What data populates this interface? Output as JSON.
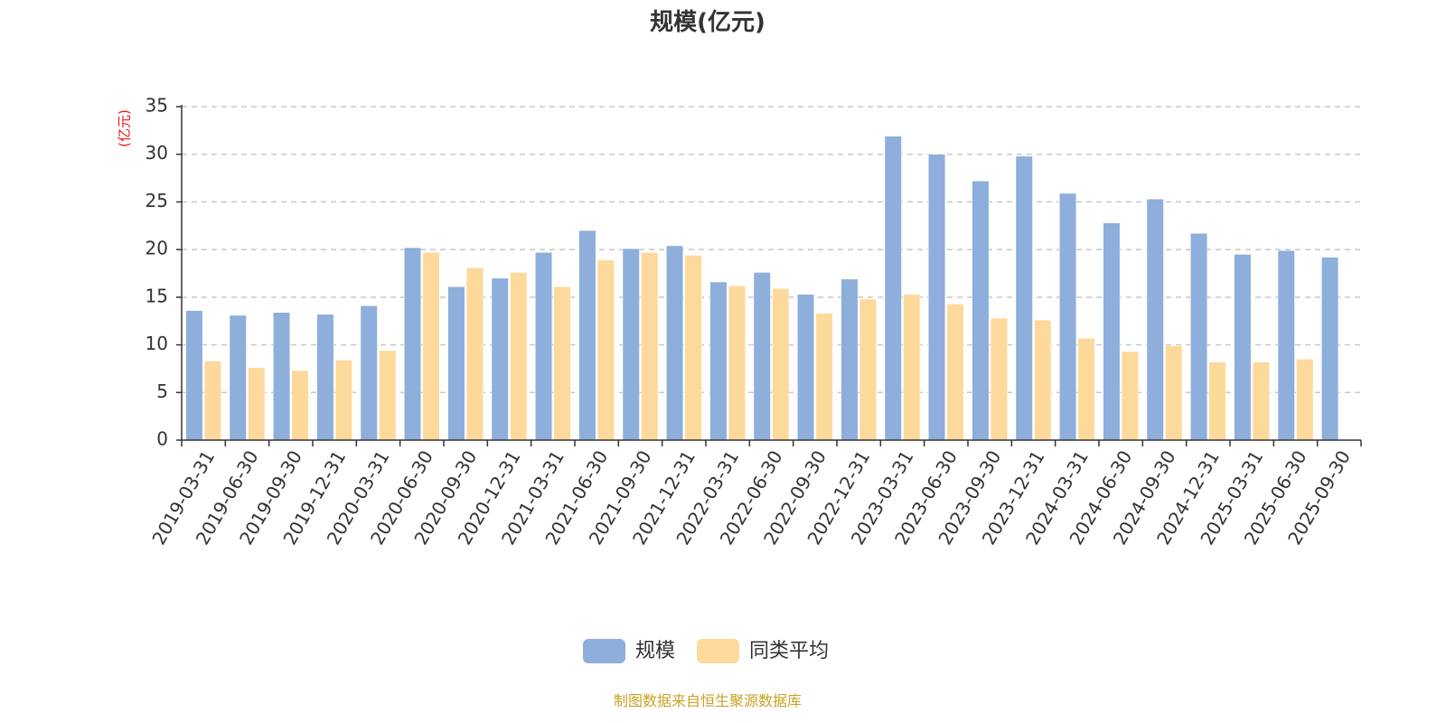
{
  "chart_data": {
    "type": "bar",
    "title": "规模(亿元)",
    "ylabel": "(亿元)",
    "ylim": [
      0,
      35
    ],
    "yticks": [
      0,
      5,
      10,
      15,
      20,
      25,
      30,
      35
    ],
    "grid": true,
    "legend_position": "bottom",
    "categories": [
      "2019-03-31",
      "2019-06-30",
      "2019-09-30",
      "2019-12-31",
      "2020-03-31",
      "2020-06-30",
      "2020-09-30",
      "2020-12-31",
      "2021-03-31",
      "2021-06-30",
      "2021-09-30",
      "2021-12-31",
      "2022-03-31",
      "2022-06-30",
      "2022-09-30",
      "2022-12-31",
      "2023-03-31",
      "2023-06-30",
      "2023-09-30",
      "2023-12-31",
      "2024-03-31",
      "2024-06-30",
      "2024-09-30",
      "2024-12-31",
      "2025-03-31",
      "2025-06-30",
      "2025-09-30"
    ],
    "series": [
      {
        "name": "规模",
        "color": "#8eaedb",
        "values": [
          13.6,
          13.1,
          13.4,
          13.2,
          14.1,
          20.2,
          16.1,
          17.0,
          19.7,
          22.0,
          20.1,
          20.4,
          16.6,
          17.6,
          15.3,
          16.9,
          31.9,
          30.0,
          27.2,
          29.8,
          25.9,
          22.8,
          25.3,
          21.7,
          19.5,
          19.9,
          19.2
        ]
      },
      {
        "name": "同类平均",
        "color": "#fdd99b",
        "values": [
          8.3,
          7.6,
          7.3,
          8.4,
          9.4,
          19.7,
          18.1,
          17.6,
          16.1,
          18.9,
          19.7,
          19.4,
          16.2,
          15.9,
          13.3,
          14.8,
          15.3,
          14.3,
          12.8,
          12.6,
          10.7,
          9.3,
          9.9,
          8.2,
          8.2,
          8.5,
          null
        ]
      }
    ],
    "source": "制图数据来自恒生聚源数据库"
  }
}
